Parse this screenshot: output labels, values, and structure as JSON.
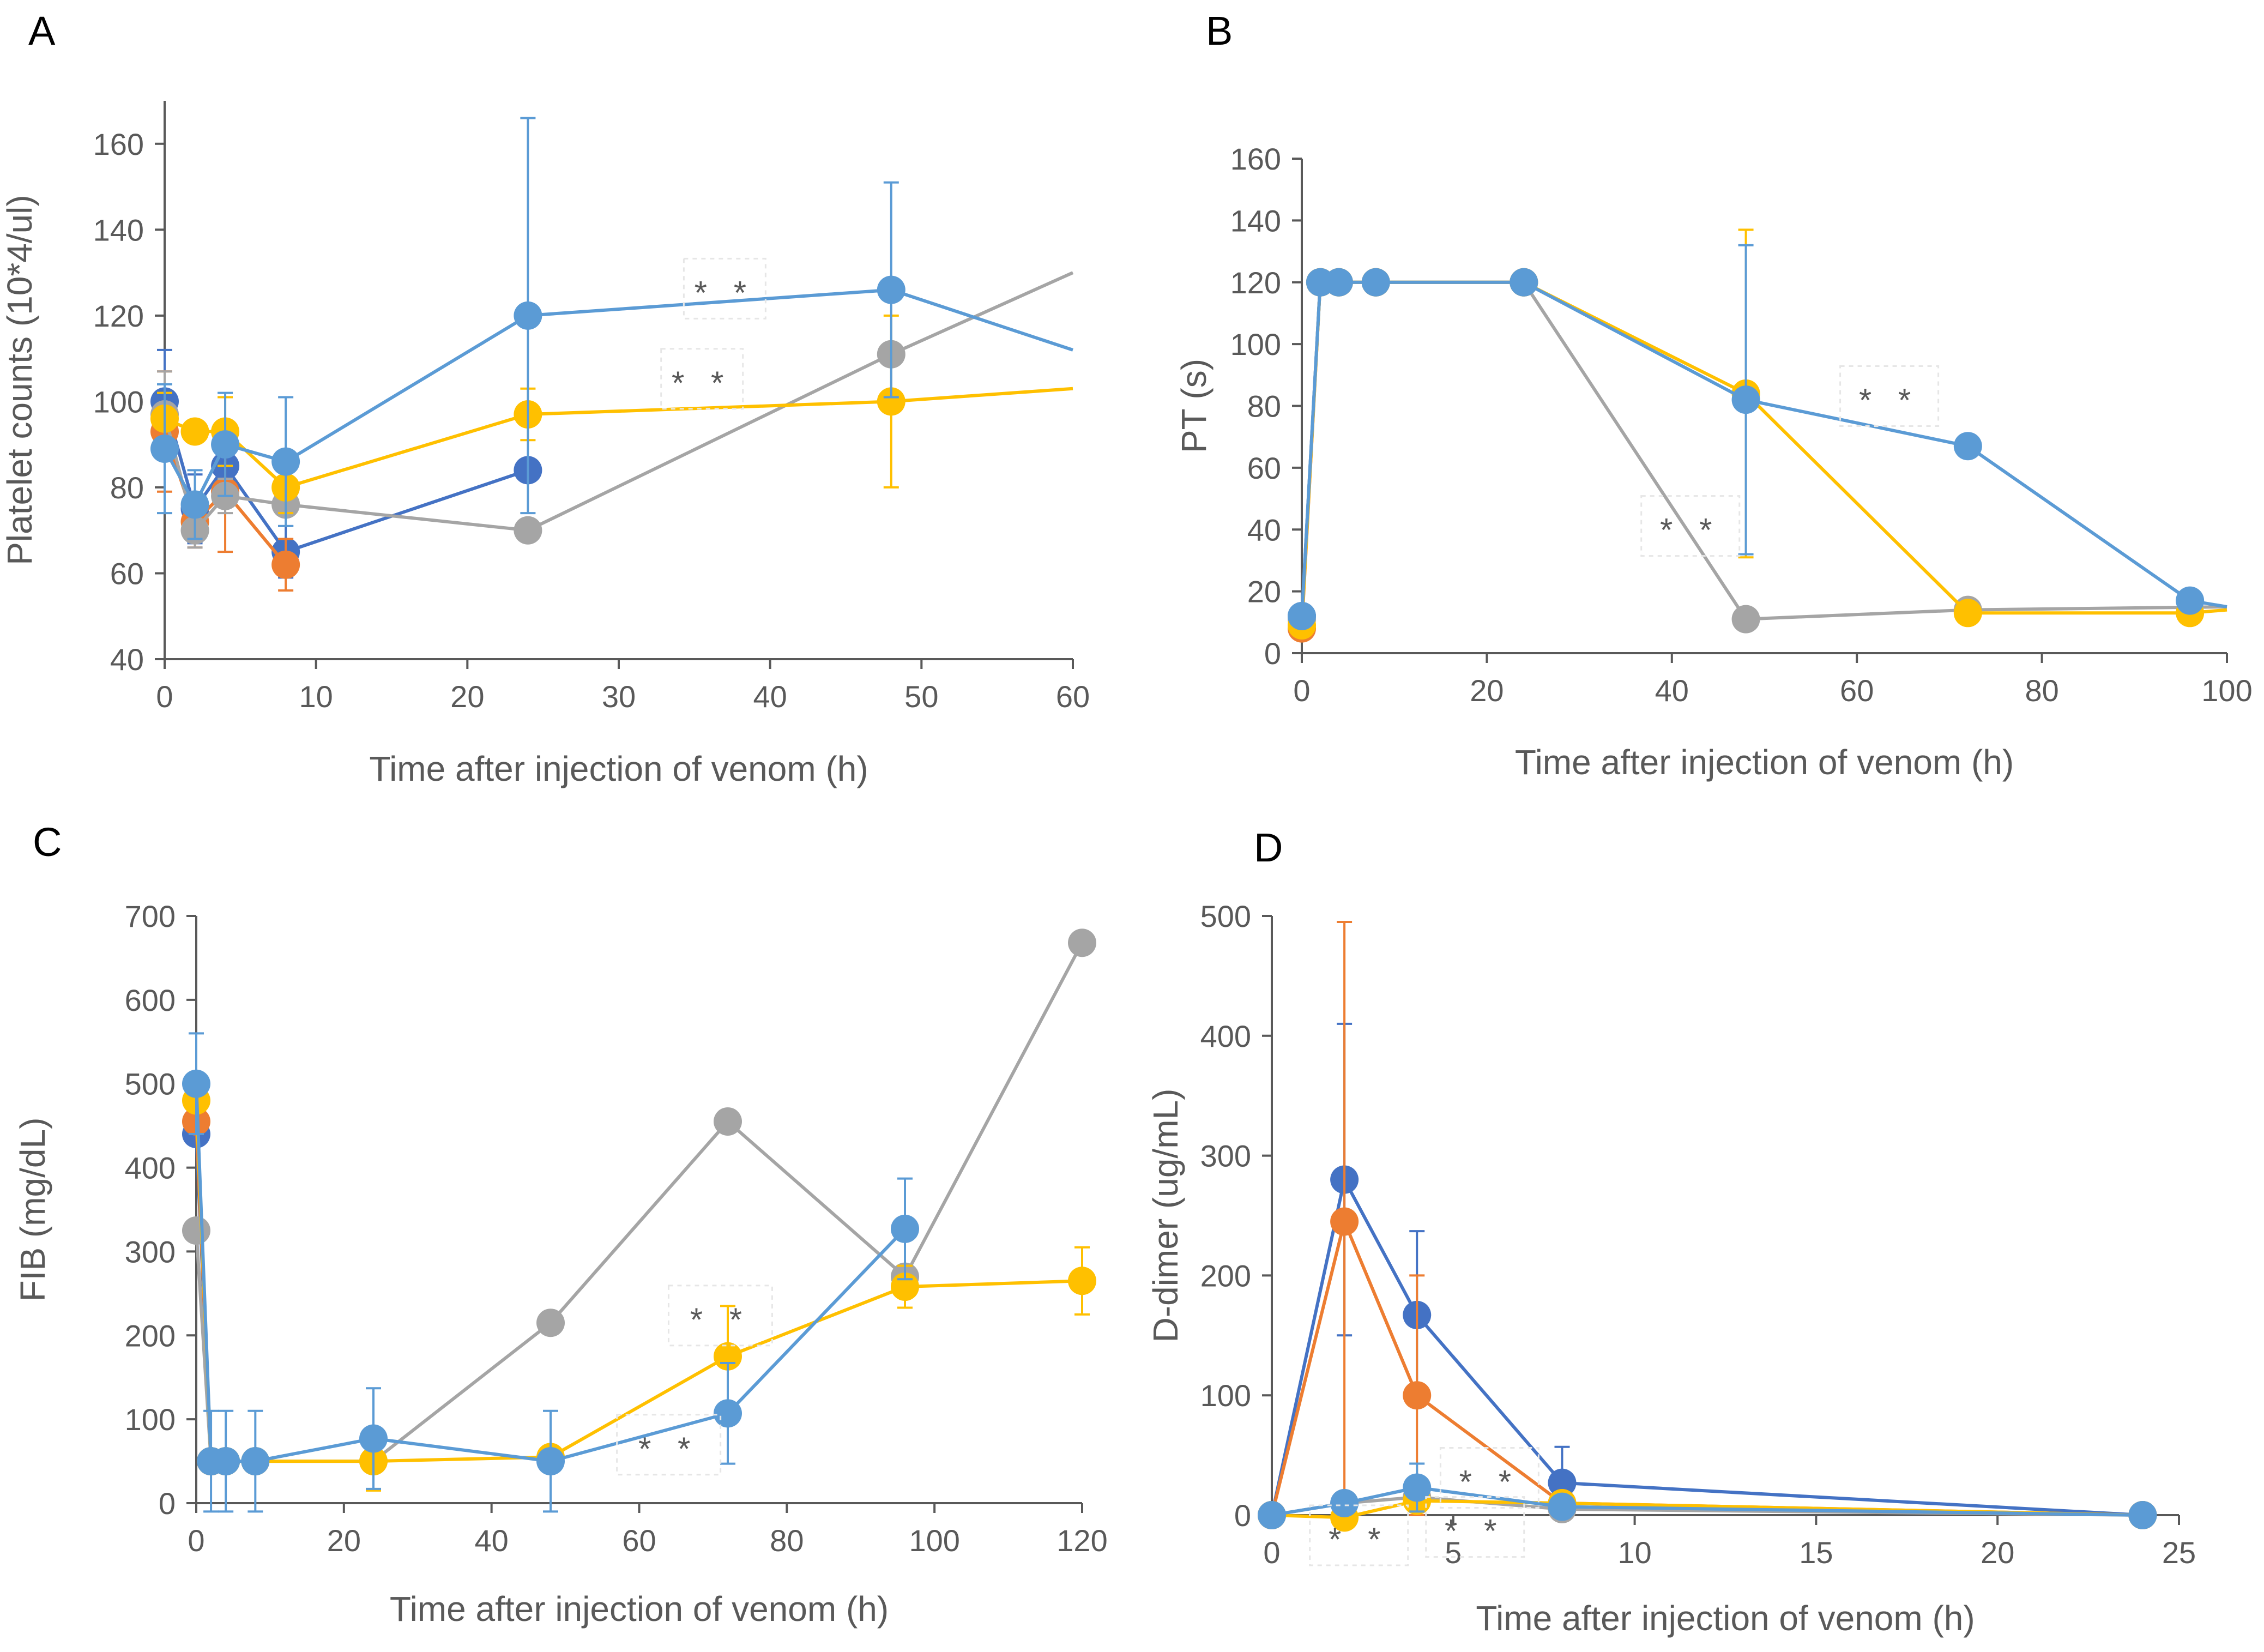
{
  "figure": {
    "colors": {
      "blue_dark": "#4472C4",
      "orange": "#ED7D31",
      "gray": "#A5A5A5",
      "gold": "#FFC000",
      "blue_light": "#5B9BD5",
      "axis": "#595959",
      "significance": "#595959"
    }
  },
  "chart_data": [
    {
      "id": "A",
      "panel_label": "A",
      "type": "line",
      "title": "",
      "xlabel": "Time after injection of venom (h)",
      "ylabel": "Platelet counts (10*4/ul)",
      "xlim": [
        0,
        60
      ],
      "ylim": [
        40,
        170
      ],
      "xticks": [
        0,
        10,
        20,
        30,
        40,
        50,
        60
      ],
      "yticks": [
        40,
        60,
        80,
        100,
        120,
        140,
        160
      ],
      "legend": "none",
      "series": [
        {
          "name": "series-dark-blue",
          "color": "blue_dark",
          "x": [
            0,
            2,
            4,
            8,
            24
          ],
          "y": [
            100,
            75,
            85,
            65,
            84
          ],
          "err": [
            12,
            8,
            6,
            6,
            0
          ]
        },
        {
          "name": "series-orange",
          "color": "orange",
          "x": [
            0,
            2,
            4,
            8
          ],
          "y": [
            93,
            72,
            79,
            62
          ],
          "err": [
            14,
            6,
            14,
            6
          ]
        },
        {
          "name": "series-gray",
          "color": "gray",
          "x": [
            0,
            2,
            4,
            8,
            24,
            48,
            60
          ],
          "y": [
            97,
            70,
            78,
            76,
            70,
            111,
            130
          ],
          "err": [
            10,
            4,
            4,
            0,
            0,
            0,
            0
          ]
        },
        {
          "name": "series-gold",
          "color": "gold",
          "x": [
            0,
            2,
            4,
            8,
            24,
            48,
            60
          ],
          "y": [
            96,
            93,
            93,
            80,
            97,
            100,
            103
          ],
          "err": [
            6,
            0,
            8,
            6,
            6,
            20,
            0
          ]
        },
        {
          "name": "series-light-blue",
          "color": "blue_light",
          "x": [
            0,
            2,
            4,
            8,
            24,
            48,
            60
          ],
          "y": [
            89,
            76,
            90,
            86,
            120,
            126,
            112
          ],
          "err": [
            15,
            8,
            12,
            15,
            46,
            25,
            0
          ]
        }
      ],
      "annotations": [
        {
          "text": "* *",
          "x": 37,
          "y": 124
        },
        {
          "text": "* *",
          "x": 35.5,
          "y": 103
        }
      ]
    },
    {
      "id": "B",
      "panel_label": "B",
      "type": "line",
      "title": "",
      "xlabel": "Time after injection of venom (h)",
      "ylabel": "PT (s)",
      "xlim": [
        0,
        100
      ],
      "ylim": [
        0,
        160
      ],
      "xticks": [
        0,
        20,
        40,
        60,
        80,
        100
      ],
      "yticks": [
        0,
        20,
        40,
        60,
        80,
        100,
        120,
        140,
        160
      ],
      "legend": "none",
      "series": [
        {
          "name": "series-dark-blue",
          "color": "blue_dark",
          "x": [
            0,
            2,
            4,
            8,
            24
          ],
          "y": [
            12,
            120,
            120,
            120,
            120
          ],
          "err": [
            0,
            0,
            0,
            0,
            0
          ]
        },
        {
          "name": "series-orange",
          "color": "orange",
          "x": [
            0,
            2,
            4,
            8,
            24
          ],
          "y": [
            8,
            120,
            120,
            120,
            120
          ],
          "err": [
            0,
            0,
            0,
            0,
            0
          ]
        },
        {
          "name": "series-gray",
          "color": "gray",
          "x": [
            0,
            2,
            4,
            8,
            24,
            48,
            72,
            100
          ],
          "y": [
            11,
            120,
            120,
            120,
            120,
            11,
            14,
            15
          ],
          "err": [
            0,
            0,
            0,
            0,
            0,
            0,
            0,
            0
          ]
        },
        {
          "name": "series-gold",
          "color": "gold",
          "x": [
            0,
            2,
            4,
            8,
            24,
            48,
            72,
            96,
            100
          ],
          "y": [
            9,
            120,
            120,
            120,
            120,
            84,
            13,
            13,
            14
          ],
          "err": [
            0,
            0,
            0,
            0,
            0,
            53,
            0,
            0,
            0
          ]
        },
        {
          "name": "series-light-blue",
          "color": "blue_light",
          "x": [
            0,
            2,
            4,
            8,
            24,
            48,
            72,
            96,
            100
          ],
          "y": [
            12,
            120,
            120,
            120,
            120,
            82,
            67,
            17,
            15
          ],
          "err": [
            0,
            0,
            0,
            0,
            0,
            50,
            0,
            0,
            0
          ]
        }
      ],
      "annotations": [
        {
          "text": "* *",
          "x": 63.5,
          "y": 80
        },
        {
          "text": "* *",
          "x": 42,
          "y": 38
        }
      ]
    },
    {
      "id": "C",
      "panel_label": "C",
      "type": "line",
      "title": "",
      "xlabel": "Time after injection of venom (h)",
      "ylabel": "FIB (mg/dL)",
      "xlim": [
        0,
        120
      ],
      "ylim": [
        0,
        700
      ],
      "xticks": [
        0,
        20,
        40,
        60,
        80,
        100,
        120
      ],
      "yticks": [
        0,
        100,
        200,
        300,
        400,
        500,
        600,
        700
      ],
      "legend": "none",
      "series": [
        {
          "name": "series-dark-blue",
          "color": "blue_dark",
          "x": [
            0,
            2
          ],
          "y": [
            440,
            50
          ],
          "err": [
            0,
            0
          ]
        },
        {
          "name": "series-orange",
          "color": "orange",
          "x": [
            0,
            2
          ],
          "y": [
            455,
            50
          ],
          "err": [
            0,
            0
          ]
        },
        {
          "name": "series-gray",
          "color": "gray",
          "x": [
            0,
            2,
            4,
            8,
            24,
            48,
            72,
            96,
            120
          ],
          "y": [
            325,
            50,
            50,
            50,
            50,
            215,
            455,
            270,
            668
          ],
          "err": [
            0,
            0,
            0,
            0,
            0,
            0,
            0,
            0,
            0
          ]
        },
        {
          "name": "series-gold",
          "color": "gold",
          "x": [
            0,
            2,
            4,
            8,
            24,
            48,
            72,
            96,
            120
          ],
          "y": [
            480,
            50,
            50,
            50,
            50,
            55,
            175,
            258,
            265
          ],
          "err": [
            0,
            0,
            0,
            0,
            35,
            0,
            60,
            25,
            40
          ]
        },
        {
          "name": "series-light-blue",
          "color": "blue_light",
          "x": [
            0,
            2,
            4,
            8,
            24,
            48,
            72,
            96
          ],
          "y": [
            500,
            50,
            50,
            50,
            77,
            50,
            107,
            327
          ],
          "err": [
            60,
            60,
            60,
            60,
            60,
            60,
            60,
            60
          ]
        }
      ],
      "annotations": [
        {
          "text": "* *",
          "x": 71,
          "y": 212
        },
        {
          "text": "* *",
          "x": 64,
          "y": 58
        }
      ]
    },
    {
      "id": "D",
      "panel_label": "D",
      "type": "line",
      "title": "",
      "xlabel": "Time after injection of venom (h)",
      "ylabel": "D-dimer (ug/mL)",
      "xlim": [
        0,
        25
      ],
      "ylim": [
        0,
        500
      ],
      "xticks": [
        0,
        5,
        10,
        15,
        20,
        25
      ],
      "yticks": [
        0,
        100,
        200,
        300,
        400,
        500
      ],
      "legend": "none",
      "series": [
        {
          "name": "series-dark-blue",
          "color": "blue_dark",
          "x": [
            0,
            2,
            4,
            8,
            24
          ],
          "y": [
            0,
            280,
            167,
            27,
            0
          ],
          "err": [
            0,
            130,
            70,
            30,
            0
          ]
        },
        {
          "name": "series-orange",
          "color": "orange",
          "x": [
            0,
            2,
            4,
            8,
            24
          ],
          "y": [
            0,
            245,
            100,
            10,
            0
          ],
          "err": [
            0,
            250,
            100,
            0,
            0
          ]
        },
        {
          "name": "series-gray",
          "color": "gray",
          "x": [
            0,
            2,
            4,
            8,
            24
          ],
          "y": [
            0,
            10,
            15,
            5,
            0
          ],
          "err": [
            0,
            0,
            0,
            0,
            0
          ]
        },
        {
          "name": "series-gold",
          "color": "gold",
          "x": [
            0,
            2,
            4,
            8,
            24
          ],
          "y": [
            0,
            -2,
            12,
            10,
            0
          ],
          "err": [
            0,
            0,
            0,
            0,
            0
          ]
        },
        {
          "name": "series-light-blue",
          "color": "blue_light",
          "x": [
            0,
            2,
            4,
            8,
            24
          ],
          "y": [
            0,
            10,
            23,
            7,
            0
          ],
          "err": [
            0,
            0,
            20,
            0,
            0
          ]
        }
      ],
      "annotations": [
        {
          "text": "* *",
          "x": 6,
          "y": 23
        },
        {
          "text": "* *",
          "x": 2.4,
          "y": -25
        },
        {
          "text": "* *",
          "x": 5.6,
          "y": -18
        }
      ]
    }
  ]
}
